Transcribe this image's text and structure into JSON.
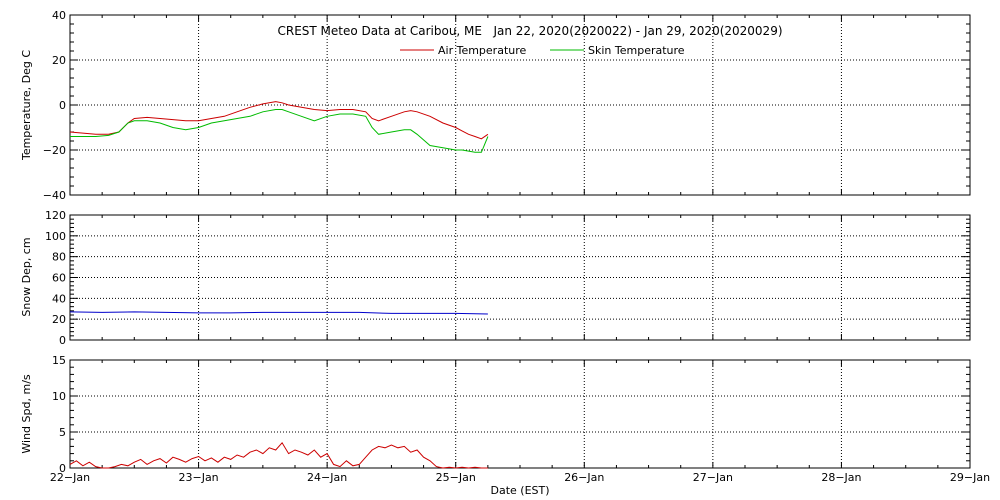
{
  "chart_data": [
    {
      "type": "line",
      "title": "CREST Meteo Data at Caribou, ME   Jan 22, 2020(2020022) - Jan 29, 2020(2020029)",
      "ylabel": "Temperature, Deg C",
      "ylim": [
        -40,
        40
      ],
      "yticks": [
        "40",
        "20",
        "0",
        "−20",
        "−40"
      ],
      "ytick_values": [
        40,
        20,
        0,
        -20,
        -40
      ],
      "xlim": [
        0,
        7
      ],
      "grid": true,
      "legend_position": "top-center",
      "series": [
        {
          "name": "Air Temperature",
          "color": "#cc0000",
          "x": [
            0,
            0.1,
            0.2,
            0.3,
            0.38,
            0.45,
            0.5,
            0.6,
            0.7,
            0.8,
            0.9,
            1.0,
            1.1,
            1.2,
            1.3,
            1.4,
            1.5,
            1.6,
            1.65,
            1.7,
            1.8,
            1.9,
            2.0,
            2.1,
            2.2,
            2.3,
            2.35,
            2.4,
            2.5,
            2.6,
            2.65,
            2.7,
            2.8,
            2.9,
            3.0,
            3.05,
            3.1,
            3.15,
            3.2,
            3.25
          ],
          "y": [
            -12,
            -12.5,
            -13,
            -13,
            -12,
            -8,
            -6,
            -5.5,
            -6,
            -6.5,
            -7,
            -7,
            -6,
            -5,
            -3,
            -1,
            0.5,
            1.5,
            1,
            0,
            -1,
            -2,
            -2.5,
            -2,
            -2,
            -3,
            -6,
            -7,
            -5,
            -3,
            -2.5,
            -3,
            -5,
            -8,
            -10,
            -11.5,
            -13,
            -14,
            -15,
            -13
          ]
        },
        {
          "name": "Skin Temperature",
          "color": "#00bb00",
          "x": [
            0,
            0.1,
            0.2,
            0.3,
            0.38,
            0.45,
            0.5,
            0.6,
            0.7,
            0.8,
            0.9,
            1.0,
            1.1,
            1.2,
            1.3,
            1.4,
            1.5,
            1.6,
            1.65,
            1.7,
            1.8,
            1.9,
            2.0,
            2.1,
            2.2,
            2.3,
            2.35,
            2.4,
            2.5,
            2.6,
            2.65,
            2.7,
            2.8,
            2.9,
            3.0,
            3.05,
            3.1,
            3.15,
            3.2,
            3.25
          ],
          "y": [
            -14,
            -14,
            -14,
            -13.5,
            -12,
            -8,
            -7,
            -7,
            -8,
            -10,
            -11,
            -10,
            -8,
            -7,
            -6,
            -5,
            -3,
            -2,
            -2,
            -3,
            -5,
            -7,
            -5,
            -4,
            -4,
            -5,
            -10,
            -13,
            -12,
            -11,
            -11,
            -13,
            -18,
            -19,
            -20,
            -20,
            -20.5,
            -21,
            -21,
            -14
          ]
        }
      ]
    },
    {
      "type": "line",
      "ylabel": "Snow Dep, cm",
      "ylim": [
        0,
        120
      ],
      "yticks": [
        "120",
        "100",
        "80",
        "60",
        "40",
        "20",
        "0"
      ],
      "ytick_values": [
        120,
        100,
        80,
        60,
        40,
        20,
        0
      ],
      "xlim": [
        0,
        7
      ],
      "grid": true,
      "series": [
        {
          "color": "#0000cc",
          "x": [
            0,
            0.25,
            0.5,
            0.75,
            1.0,
            1.25,
            1.5,
            1.75,
            2.0,
            2.25,
            2.5,
            2.75,
            3.0,
            3.25
          ],
          "y": [
            27,
            26.5,
            27,
            26.5,
            26,
            26,
            26.5,
            26.5,
            26.5,
            26.5,
            25.5,
            25.5,
            25.5,
            25
          ]
        }
      ]
    },
    {
      "type": "line",
      "ylabel": "Wind Spd, m/s",
      "ylim": [
        0,
        15
      ],
      "yticks": [
        "15",
        "10",
        "5",
        "0"
      ],
      "ytick_values": [
        15,
        10,
        5,
        0
      ],
      "xlabel": "Date (EST)",
      "xticks": [
        "22−Jan",
        "23−Jan",
        "24−Jan",
        "25−Jan",
        "26−Jan",
        "27−Jan",
        "28−Jan",
        "29−Jan"
      ],
      "xtick_values": [
        0,
        1,
        2,
        3,
        4,
        5,
        6,
        7
      ],
      "xlim": [
        0,
        7
      ],
      "grid": true,
      "series": [
        {
          "color": "#cc0000",
          "x": [
            0,
            0.05,
            0.1,
            0.15,
            0.2,
            0.25,
            0.3,
            0.35,
            0.4,
            0.45,
            0.5,
            0.55,
            0.6,
            0.65,
            0.7,
            0.75,
            0.8,
            0.85,
            0.9,
            0.95,
            1.0,
            1.05,
            1.1,
            1.15,
            1.2,
            1.25,
            1.3,
            1.35,
            1.4,
            1.45,
            1.5,
            1.55,
            1.6,
            1.65,
            1.7,
            1.75,
            1.8,
            1.85,
            1.9,
            1.95,
            2.0,
            2.05,
            2.1,
            2.15,
            2.2,
            2.25,
            2.3,
            2.35,
            2.4,
            2.45,
            2.5,
            2.55,
            2.6,
            2.65,
            2.7,
            2.75,
            2.8,
            2.85,
            2.9,
            2.95,
            3.0,
            3.05,
            3.1,
            3.15,
            3.2,
            3.25
          ],
          "y": [
            0.5,
            1,
            0.3,
            0.8,
            0.2,
            0,
            0,
            0.2,
            0.5,
            0.3,
            0.8,
            1.2,
            0.5,
            1,
            1.3,
            0.7,
            1.5,
            1.2,
            0.8,
            1.3,
            1.6,
            1,
            1.4,
            0.8,
            1.5,
            1.2,
            1.8,
            1.5,
            2.2,
            2.5,
            2,
            2.8,
            2.5,
            3.5,
            2,
            2.5,
            2.2,
            1.8,
            2.5,
            1.5,
            2,
            0.5,
            0.2,
            1,
            0.3,
            0.5,
            1.5,
            2.5,
            3,
            2.8,
            3.2,
            2.8,
            3,
            2.2,
            2.5,
            1.5,
            1,
            0.2,
            0,
            0.1,
            0,
            0.1,
            0,
            0.1,
            0,
            0
          ]
        }
      ]
    }
  ]
}
